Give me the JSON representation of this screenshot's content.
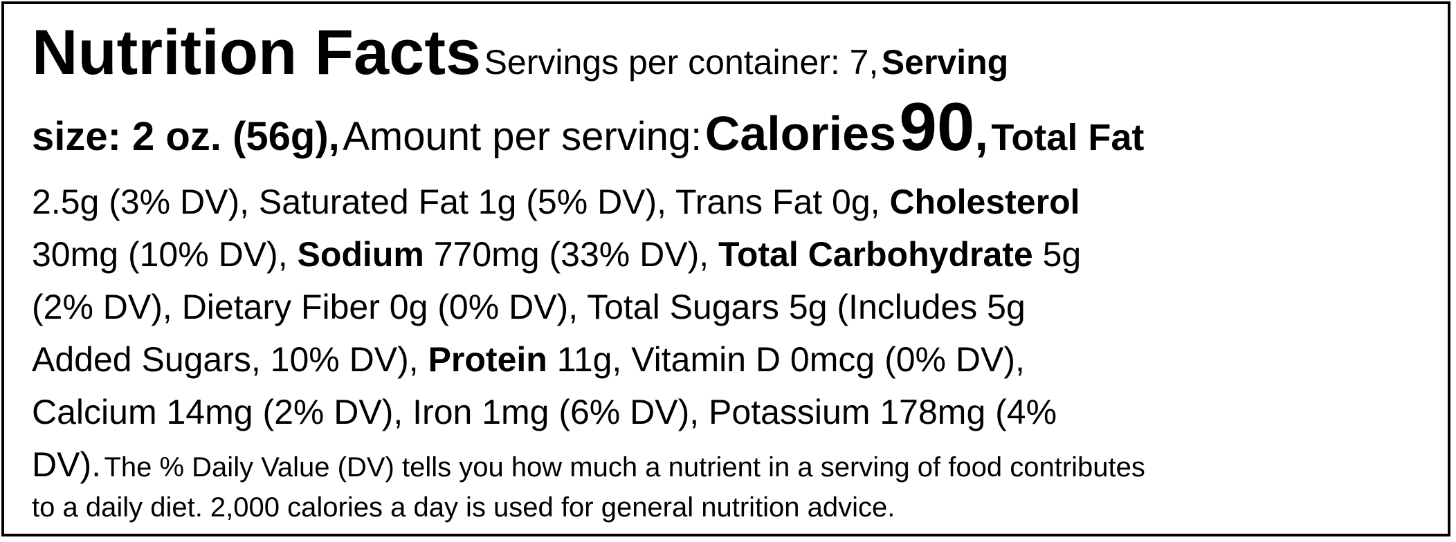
{
  "label": {
    "title": "Nutrition Facts",
    "servings_text": "Servings per container: 7,",
    "serving_size_1": "Serving",
    "serving_size_2": "size: 2 oz. (56g),",
    "amount_per_serving": "Amount per serving:",
    "calories_label": "Calories",
    "calories_value": "90",
    "total_fat_label": "Total Fat",
    "total_fat_value": "2.5g (3% DV), Saturated Fat 1g (5% DV), Trans Fat 0g,",
    "cholesterol_label": "Cholesterol",
    "cholesterol_value": "30mg (10% DV),",
    "sodium_label": "Sodium",
    "sodium_value": "770mg (33% DV),",
    "carb_label": "Total Carbohydrate",
    "carb_value_1": "5g",
    "carb_value_2": "(2% DV), Dietary Fiber 0g (0% DV), Total Sugars 5g (Includes 5g",
    "carb_value_3": "Added Sugars, 10% DV),",
    "protein_label": "Protein",
    "protein_value": "11g, Vitamin D 0mcg (0% DV),",
    "minerals_line": "Calcium 14mg (2% DV), Iron 1mg (6% DV), Potassium 178mg (4%",
    "minerals_end": "DV).",
    "footnote_1": "The % Daily Value (DV) tells you how much a nutrient in a serving of food contributes",
    "footnote_2": "to a daily diet. 2,000 calories a day is used for general nutrition advice."
  }
}
